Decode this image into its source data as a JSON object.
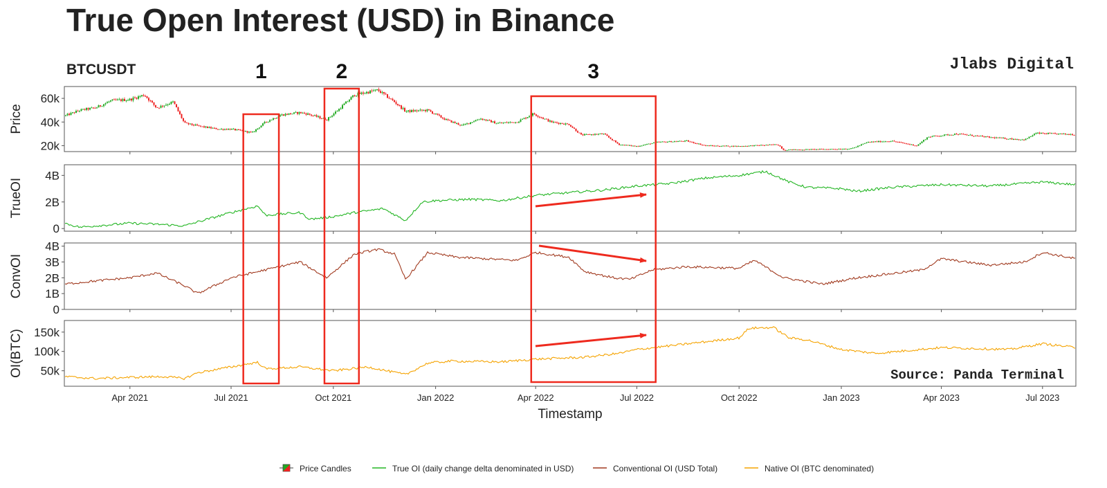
{
  "title": "True Open Interest (USD) in Binance",
  "subtitle_left": "BTCUSDT",
  "brand": "Jlabs Digital",
  "source": "Source: Panda Terminal",
  "annotations": [
    {
      "label": "1",
      "x_start": "2021-07-12",
      "x_end": "2021-08-13"
    },
    {
      "label": "2",
      "x_start": "2021-09-23",
      "x_end": "2021-10-24"
    },
    {
      "label": "3",
      "x_start": "2022-03-28",
      "x_end": "2022-07-18"
    }
  ],
  "colors": {
    "candle_up": "#22aa22",
    "candle_down": "#ee2222",
    "true_oi": "#22b522",
    "conv_oi": "#a0391e",
    "native_oi": "#f5a300",
    "annotation": "#ee2a1e"
  },
  "chart_data": {
    "type": "line",
    "xlabel": "Timestamp",
    "x_range": [
      "2021-02-01",
      "2023-07-31"
    ],
    "x_ticks": [
      {
        "date": "2021-04-01",
        "label": "Apr 2021"
      },
      {
        "date": "2021-07-01",
        "label": "Jul 2021"
      },
      {
        "date": "2021-10-01",
        "label": "Oct 2021"
      },
      {
        "date": "2022-01-01",
        "label": "Jan 2022"
      },
      {
        "date": "2022-04-01",
        "label": "Apr 2022"
      },
      {
        "date": "2022-07-01",
        "label": "Jul 2022"
      },
      {
        "date": "2022-10-01",
        "label": "Oct 2022"
      },
      {
        "date": "2023-01-01",
        "label": "Jan 2023"
      },
      {
        "date": "2023-04-01",
        "label": "Apr 2023"
      },
      {
        "date": "2023-07-01",
        "label": "Jul 2023"
      }
    ],
    "panels": [
      {
        "id": "price",
        "ylabel": "Price",
        "type": "candlestick",
        "ylim": [
          15000,
          70000
        ],
        "ticks": [
          {
            "v": 20000,
            "label": "20k"
          },
          {
            "v": 40000,
            "label": "40k"
          },
          {
            "v": 60000,
            "label": "60k"
          }
        ],
        "series": [
          {
            "name": "Price Candles",
            "points": [
              [
                "2021-02-01",
                45000
              ],
              [
                "2021-02-15",
                50000
              ],
              [
                "2021-03-01",
                52000
              ],
              [
                "2021-03-15",
                58000
              ],
              [
                "2021-04-01",
                59000
              ],
              [
                "2021-04-14",
                63000
              ],
              [
                "2021-04-25",
                52000
              ],
              [
                "2021-05-10",
                57000
              ],
              [
                "2021-05-20",
                39000
              ],
              [
                "2021-06-05",
                36000
              ],
              [
                "2021-06-20",
                34000
              ],
              [
                "2021-07-01",
                34000
              ],
              [
                "2021-07-20",
                31000
              ],
              [
                "2021-08-01",
                40000
              ],
              [
                "2021-08-15",
                46000
              ],
              [
                "2021-09-01",
                48000
              ],
              [
                "2021-09-07",
                47000
              ],
              [
                "2021-09-25",
                42000
              ],
              [
                "2021-10-05",
                50000
              ],
              [
                "2021-10-20",
                63000
              ],
              [
                "2021-11-10",
                67000
              ],
              [
                "2021-11-25",
                57000
              ],
              [
                "2021-12-05",
                49000
              ],
              [
                "2021-12-25",
                50000
              ],
              [
                "2022-01-10",
                42000
              ],
              [
                "2022-01-25",
                37000
              ],
              [
                "2022-02-10",
                43000
              ],
              [
                "2022-02-25",
                39000
              ],
              [
                "2022-03-15",
                40000
              ],
              [
                "2022-03-30",
                47000
              ],
              [
                "2022-04-15",
                40000
              ],
              [
                "2022-05-01",
                38000
              ],
              [
                "2022-05-12",
                29000
              ],
              [
                "2022-06-01",
                30000
              ],
              [
                "2022-06-15",
                21000
              ],
              [
                "2022-07-01",
                19500
              ],
              [
                "2022-07-20",
                23000
              ],
              [
                "2022-08-15",
                24000
              ],
              [
                "2022-09-01",
                20000
              ],
              [
                "2022-10-01",
                19500
              ],
              [
                "2022-11-05",
                21000
              ],
              [
                "2022-11-10",
                16500
              ],
              [
                "2022-12-15",
                17000
              ],
              [
                "2023-01-10",
                17500
              ],
              [
                "2023-01-25",
                23000
              ],
              [
                "2023-02-15",
                24000
              ],
              [
                "2023-03-10",
                20000
              ],
              [
                "2023-03-20",
                27500
              ],
              [
                "2023-04-15",
                30000
              ],
              [
                "2023-05-15",
                27000
              ],
              [
                "2023-06-15",
                25000
              ],
              [
                "2023-06-25",
                30500
              ],
              [
                "2023-07-31",
                29500
              ]
            ]
          }
        ]
      },
      {
        "id": "true_oi",
        "ylabel": "TrueOI",
        "type": "line",
        "ylim": [
          -200000000,
          4800000000
        ],
        "ticks": [
          {
            "v": 0,
            "label": "0"
          },
          {
            "v": 2000000000,
            "label": "2B"
          },
          {
            "v": 4000000000,
            "label": "4B"
          }
        ],
        "series": [
          {
            "name": "True OI (daily change delta denominated in USD)",
            "points": [
              [
                "2021-02-01",
                400000000
              ],
              [
                "2021-02-15",
                100000000
              ],
              [
                "2021-03-01",
                200000000
              ],
              [
                "2021-04-01",
                400000000
              ],
              [
                "2021-05-01",
                300000000
              ],
              [
                "2021-05-20",
                200000000
              ],
              [
                "2021-06-01",
                500000000
              ],
              [
                "2021-07-01",
                1200000000
              ],
              [
                "2021-07-25",
                1700000000
              ],
              [
                "2021-08-01",
                1000000000
              ],
              [
                "2021-09-01",
                1200000000
              ],
              [
                "2021-09-10",
                700000000
              ],
              [
                "2021-10-01",
                900000000
              ],
              [
                "2021-10-20",
                1200000000
              ],
              [
                "2021-11-15",
                1500000000
              ],
              [
                "2021-12-05",
                600000000
              ],
              [
                "2021-12-20",
                2000000000
              ],
              [
                "2022-01-01",
                2100000000
              ],
              [
                "2022-02-01",
                2200000000
              ],
              [
                "2022-03-01",
                2100000000
              ],
              [
                "2022-04-01",
                2500000000
              ],
              [
                "2022-05-01",
                2700000000
              ],
              [
                "2022-06-01",
                2900000000
              ],
              [
                "2022-07-01",
                3200000000
              ],
              [
                "2022-08-01",
                3400000000
              ],
              [
                "2022-09-01",
                3800000000
              ],
              [
                "2022-10-01",
                4000000000
              ],
              [
                "2022-10-25",
                4300000000
              ],
              [
                "2022-11-15",
                3500000000
              ],
              [
                "2022-12-01",
                3100000000
              ],
              [
                "2023-01-01",
                3000000000
              ],
              [
                "2023-01-15",
                2800000000
              ],
              [
                "2023-02-15",
                3100000000
              ],
              [
                "2023-04-01",
                3300000000
              ],
              [
                "2023-05-15",
                3200000000
              ],
              [
                "2023-07-01",
                3500000000
              ],
              [
                "2023-07-31",
                3300000000
              ]
            ]
          }
        ]
      },
      {
        "id": "conv_oi",
        "ylabel": "ConvOI",
        "type": "line",
        "ylim": [
          0,
          4200000000
        ],
        "ticks": [
          {
            "v": 0,
            "label": "0"
          },
          {
            "v": 1000000000,
            "label": "1B"
          },
          {
            "v": 2000000000,
            "label": "2B"
          },
          {
            "v": 3000000000,
            "label": "3B"
          },
          {
            "v": 4000000000,
            "label": "4B"
          }
        ],
        "series": [
          {
            "name": "Conventional OI (USD Total)",
            "points": [
              [
                "2021-02-01",
                1600000000
              ],
              [
                "2021-03-01",
                1800000000
              ],
              [
                "2021-04-01",
                2000000000
              ],
              [
                "2021-04-25",
                2300000000
              ],
              [
                "2021-05-20",
                1500000000
              ],
              [
                "2021-06-01",
                1000000000
              ],
              [
                "2021-07-01",
                2000000000
              ],
              [
                "2021-08-01",
                2500000000
              ],
              [
                "2021-09-01",
                3000000000
              ],
              [
                "2021-09-25",
                2000000000
              ],
              [
                "2021-10-20",
                3500000000
              ],
              [
                "2021-11-10",
                3800000000
              ],
              [
                "2021-11-25",
                3500000000
              ],
              [
                "2021-12-05",
                1900000000
              ],
              [
                "2021-12-25",
                3600000000
              ],
              [
                "2022-01-20",
                3300000000
              ],
              [
                "2022-02-15",
                3200000000
              ],
              [
                "2022-03-15",
                3100000000
              ],
              [
                "2022-04-01",
                3600000000
              ],
              [
                "2022-05-01",
                3300000000
              ],
              [
                "2022-05-15",
                2400000000
              ],
              [
                "2022-06-10",
                2000000000
              ],
              [
                "2022-06-25",
                1900000000
              ],
              [
                "2022-07-15",
                2500000000
              ],
              [
                "2022-08-15",
                2700000000
              ],
              [
                "2022-10-01",
                2600000000
              ],
              [
                "2022-10-15",
                3100000000
              ],
              [
                "2022-11-10",
                2000000000
              ],
              [
                "2022-12-15",
                1600000000
              ],
              [
                "2023-01-15",
                2000000000
              ],
              [
                "2023-03-15",
                2500000000
              ],
              [
                "2023-04-01",
                3200000000
              ],
              [
                "2023-05-15",
                2800000000
              ],
              [
                "2023-06-15",
                3000000000
              ],
              [
                "2023-07-01",
                3600000000
              ],
              [
                "2023-07-31",
                3200000000
              ]
            ]
          }
        ]
      },
      {
        "id": "native_oi",
        "ylabel": "OI(BTC)",
        "type": "line",
        "ylim": [
          10000,
          180000
        ],
        "ticks": [
          {
            "v": 50000,
            "label": "50k"
          },
          {
            "v": 100000,
            "label": "100k"
          },
          {
            "v": 150000,
            "label": "150k"
          }
        ],
        "series": [
          {
            "name": "Native OI (BTC denominated)",
            "points": [
              [
                "2021-02-01",
                35000
              ],
              [
                "2021-03-01",
                30000
              ],
              [
                "2021-04-01",
                33000
              ],
              [
                "2021-05-01",
                35000
              ],
              [
                "2021-05-20",
                30000
              ],
              [
                "2021-06-01",
                45000
              ],
              [
                "2021-07-01",
                60000
              ],
              [
                "2021-07-25",
                72000
              ],
              [
                "2021-08-01",
                55000
              ],
              [
                "2021-09-01",
                60000
              ],
              [
                "2021-10-01",
                50000
              ],
              [
                "2021-11-01",
                60000
              ],
              [
                "2021-12-05",
                40000
              ],
              [
                "2021-12-25",
                70000
              ],
              [
                "2022-01-15",
                75000
              ],
              [
                "2022-03-01",
                73000
              ],
              [
                "2022-04-01",
                80000
              ],
              [
                "2022-05-15",
                85000
              ],
              [
                "2022-06-15",
                95000
              ],
              [
                "2022-07-01",
                105000
              ],
              [
                "2022-08-01",
                115000
              ],
              [
                "2022-09-01",
                125000
              ],
              [
                "2022-10-01",
                135000
              ],
              [
                "2022-10-10",
                160000
              ],
              [
                "2022-11-01",
                162000
              ],
              [
                "2022-11-15",
                135000
              ],
              [
                "2022-12-01",
                130000
              ],
              [
                "2023-01-01",
                105000
              ],
              [
                "2023-02-01",
                95000
              ],
              [
                "2023-04-01",
                110000
              ],
              [
                "2023-06-01",
                105000
              ],
              [
                "2023-07-01",
                120000
              ],
              [
                "2023-07-31",
                110000
              ]
            ]
          }
        ]
      }
    ]
  },
  "legend": {
    "items": [
      {
        "key": "candle",
        "label": "Price Candles"
      },
      {
        "key": "true_oi",
        "label": "True OI (daily change delta denominated in USD)"
      },
      {
        "key": "conv_oi",
        "label": "Conventional OI (USD Total)"
      },
      {
        "key": "native_oi",
        "label": "Native OI (BTC denominated)"
      }
    ]
  }
}
